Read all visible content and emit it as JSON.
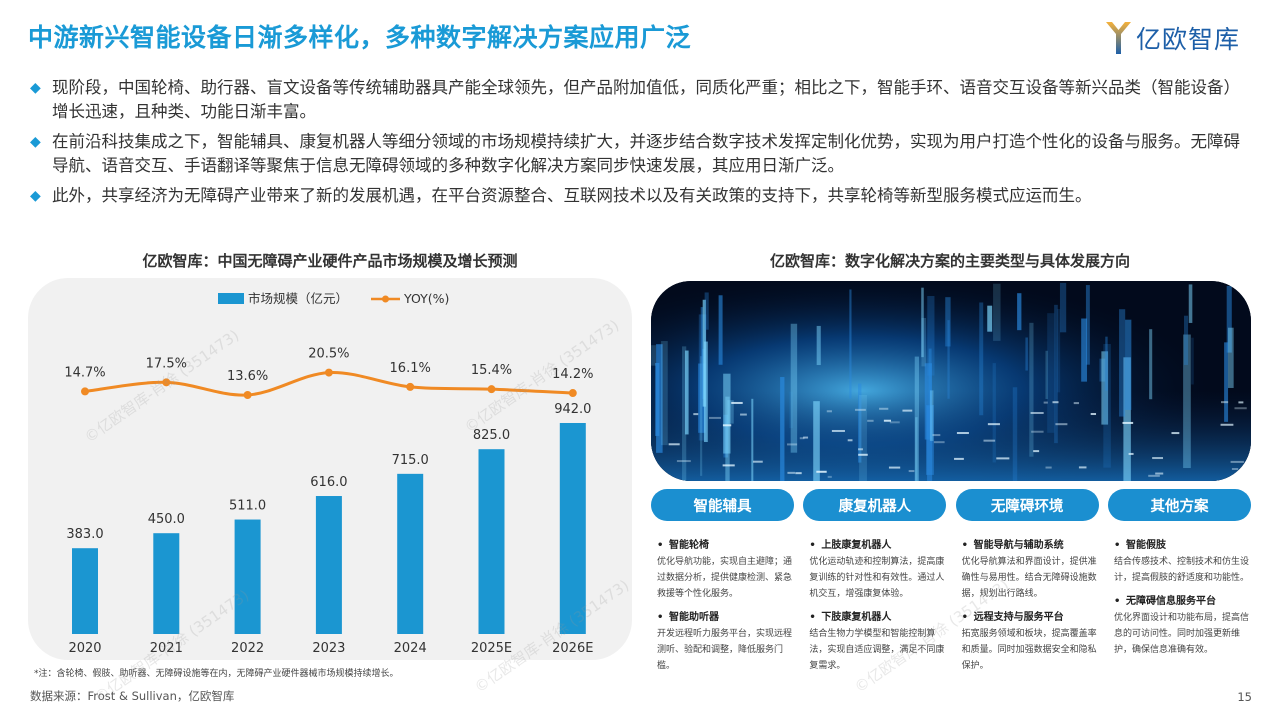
{
  "title": "中游新兴智能设备日渐多样化，多种数字解决方案应用广泛",
  "logo": {
    "text": "亿欧智库"
  },
  "bullets": [
    "现阶段，中国轮椅、助行器、盲文设备等传统辅助器具产能全球领先，但产品附加值低，同质化严重；相比之下，智能手环、语音交互设备等新兴品类（智能设备）增长迅速，且种类、功能日渐丰富。",
    "在前沿科技集成之下，智能辅具、康复机器人等细分领域的市场规模持续扩大，并逐步结合数字技术发挥定制化优势，实现为用户打造个性化的设备与服务。无障碍导航、语音交互、手语翻译等聚焦于信息无障碍领域的多种数字化解决方案同步快速发展，其应用日渐广泛。",
    "此外，共享经济为无障碍产业带来了新的发展机遇，在平台资源整合、互联网技术以及有关政策的支持下，共享轮椅等新型服务模式应运而生。"
  ],
  "chart_title": "亿欧智库：中国无障碍产业硬件产品市场规模及增长预测",
  "chart_data": {
    "type": "bar",
    "categories": [
      "2020",
      "2021",
      "2022",
      "2023",
      "2024",
      "2025E",
      "2026E"
    ],
    "series": [
      {
        "name": "市场规模（亿元）",
        "type": "bar",
        "values": [
          383.0,
          450.0,
          511.0,
          616.0,
          715.0,
          825.0,
          942.0
        ],
        "labels": [
          "383.0",
          "450.0",
          "511.0",
          "616.0",
          "715.0",
          "825.0",
          "942.0"
        ],
        "color": "#1b96d1"
      },
      {
        "name": "YOY(%)",
        "type": "line",
        "values": [
          14.7,
          17.5,
          13.6,
          20.5,
          16.1,
          15.4,
          14.2
        ],
        "labels": [
          "14.7%",
          "17.5%",
          "13.6%",
          "20.5%",
          "16.1%",
          "15.4%",
          "14.2%"
        ],
        "color": "#f08a24"
      }
    ],
    "legend_position": "top",
    "grid": false
  },
  "note": "*注：含轮椅、假肢、助听器、无障碍设施等在内，无障碍产业硬件器械市场规模持续增长。",
  "source": "数据来源：Frost & Sullivan，亿欧智库",
  "panel_title": "亿欧智库：数字化解决方案的主要类型与具体发展方向",
  "categories": [
    {
      "label": "智能辅具",
      "items": [
        {
          "title": "智能轮椅",
          "desc": "优化导航功能，实现自主避障；通过数据分析，提供健康检测、紧急救援等个性化服务。"
        },
        {
          "title": "智能助听器",
          "desc": "开发远程听力服务平台，实现远程测听、验配和调整，降低服务门槛。"
        }
      ]
    },
    {
      "label": "康复机器人",
      "items": [
        {
          "title": "上肢康复机器人",
          "desc": "优化运动轨迹和控制算法，提高康复训练的针对性和有效性。通过人机交互，增强康复体验。"
        },
        {
          "title": "下肢康复机器人",
          "desc": "结合生物力学模型和智能控制算法，实现自适应调整，满足不同康复需求。"
        }
      ]
    },
    {
      "label": "无障碍环境",
      "items": [
        {
          "title": "智能导航与辅助系统",
          "desc": "优化导航算法和界面设计，提供准确性与易用性。结合无障碍设施数据，规划出行路线。"
        },
        {
          "title": "远程支持与服务平台",
          "desc": "拓宽服务领域和板块，提高覆盖率和质量。同时加强数据安全和隐私保护。"
        }
      ]
    },
    {
      "label": "其他方案",
      "items": [
        {
          "title": "智能假肢",
          "desc": "结合传感技术、控制技术和仿生设计，提高假肢的舒适度和功能性。"
        },
        {
          "title": "无障碍信息服务平台",
          "desc": "优化界面设计和功能布局，提高信息的可访问性。同时加强更新维护，确保信息准确有效。"
        }
      ]
    }
  ],
  "page_number": "15",
  "watermark": "©亿欧智库-肖徐 (351473)",
  "colors": {
    "accent": "#1a9ad6",
    "bar": "#1b96d1",
    "line": "#f08a24",
    "pill": "#1b8fd0"
  }
}
